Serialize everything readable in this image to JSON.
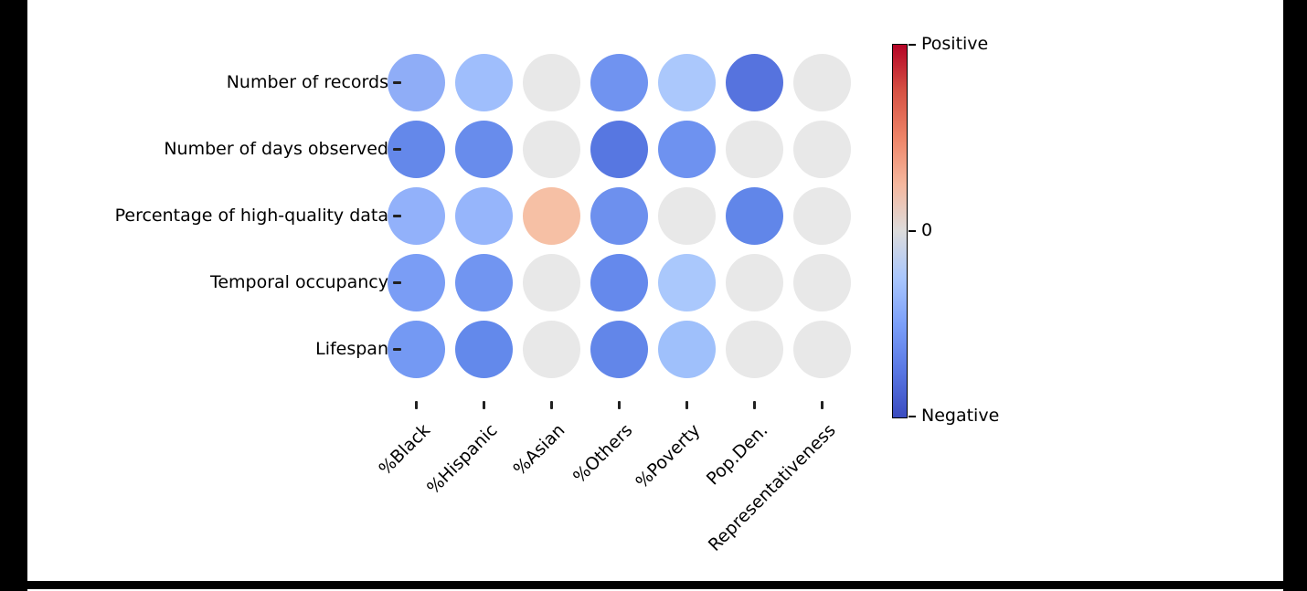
{
  "figure": {
    "background": "#ffffff",
    "frame_color": "#000000"
  },
  "chart_data": {
    "type": "heatmap",
    "subtype": "bubble-correlation-matrix",
    "title": "",
    "xlabel": "",
    "ylabel": "",
    "grid": false,
    "rows": [
      "Number of records",
      "Number of days observed",
      "Percentage of high-quality data",
      "Temporal occupancy",
      "Lifespan"
    ],
    "columns": [
      "%Black",
      "%Hispanic",
      "%Asian",
      "%Others",
      "%Poverty",
      "Pop.Den.",
      "Representativeness"
    ],
    "value_range": [
      -1,
      1
    ],
    "values": [
      [
        -0.35,
        -0.27,
        0.0,
        -0.48,
        -0.2,
        -0.66,
        0.0
      ],
      [
        -0.56,
        -0.53,
        0.0,
        -0.64,
        -0.49,
        0.0,
        0.0
      ],
      [
        -0.33,
        -0.31,
        0.25,
        -0.5,
        0.0,
        -0.58,
        0.0
      ],
      [
        -0.43,
        -0.47,
        0.0,
        -0.55,
        -0.2,
        0.0,
        0.0
      ],
      [
        -0.46,
        -0.57,
        0.0,
        -0.57,
        -0.26,
        0.0,
        0.0
      ]
    ],
    "cell_colors": [
      [
        "#8fadf7",
        "#9fbefc",
        "#e8e8e8",
        "#7093f0",
        "#abc8fc",
        "#5673de",
        "#e8e8e8"
      ],
      [
        "#6488ea",
        "#688cec",
        "#e8e8e8",
        "#5777e1",
        "#6e92f0",
        "#e8e8e8",
        "#e8e8e8"
      ],
      [
        "#92b1fa",
        "#96b5fb",
        "#f6c0a5",
        "#6d90ee",
        "#e8e8e8",
        "#6186e9",
        "#e8e8e8"
      ],
      [
        "#7a9df5",
        "#7195f1",
        "#e8e8e8",
        "#6589ec",
        "#aac8fc",
        "#e8e8e8",
        "#e8e8e8"
      ],
      [
        "#7499f3",
        "#6389eb",
        "#e8e8e8",
        "#6286e9",
        "#9fc0fb",
        "#e8e8e8",
        "#e8e8e8"
      ]
    ],
    "colorbar": {
      "position": "right",
      "colormap": "coolwarm",
      "top_label": "Positive",
      "mid_label": "0",
      "bottom_label": "Negative",
      "gradient_stops_top_to_bottom": [
        "#b40426",
        "#d65244",
        "#ee8468",
        "#f5b79e",
        "#dddcdc",
        "#aac7fd",
        "#7b9ff9",
        "#5977e3",
        "#3b4cc0"
      ]
    }
  }
}
